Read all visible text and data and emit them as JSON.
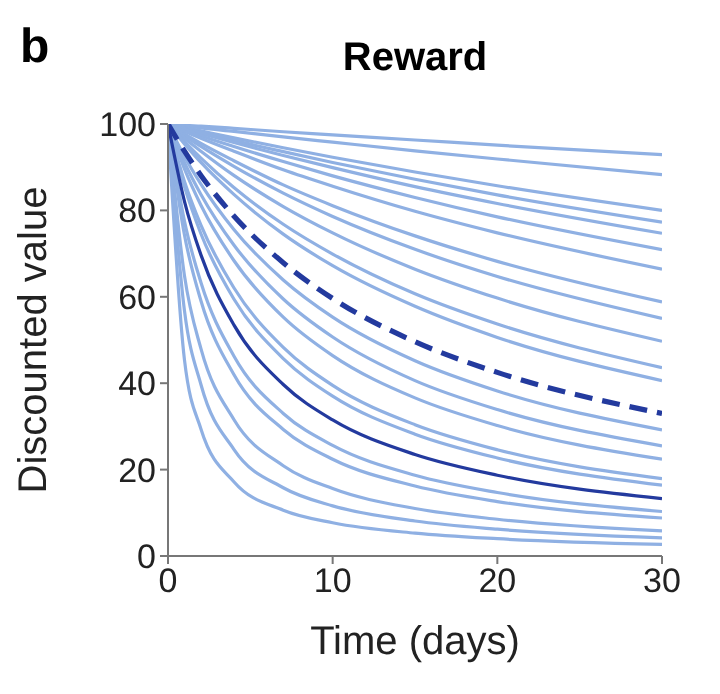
{
  "chart_data": {
    "type": "line",
    "title": "Reward",
    "xlabel": "Time (days)",
    "ylabel": "Discounted value",
    "annotations": [
      "b"
    ],
    "x": [
      0,
      1,
      2,
      4,
      7,
      10,
      15,
      20,
      30
    ],
    "xlim": [
      0,
      30
    ],
    "xticks": [
      0,
      10,
      20,
      30
    ],
    "ylim": [
      0,
      100
    ],
    "yticks": [
      0,
      20,
      40,
      60,
      80,
      100
    ],
    "grid": false,
    "marker": "none",
    "line_style": "solid",
    "series": [
      {
        "color": "#8fb0e3",
        "values": [
          100,
          99.7,
          99.5,
          99.0,
          98.2,
          97.5,
          96.3,
          95.1,
          92.9
        ]
      },
      {
        "color": "#8fb0e3",
        "values": [
          100,
          99.6,
          99.1,
          98.3,
          97.0,
          95.8,
          93.8,
          91.9,
          88.3
        ]
      },
      {
        "color": "#8fb0e3",
        "values": [
          100,
          99.2,
          98.4,
          96.8,
          94.5,
          92.3,
          88.9,
          85.7,
          80.0
        ]
      },
      {
        "color": "#8fb0e3",
        "values": [
          100,
          99.0,
          98.1,
          96.2,
          93.6,
          91.1,
          87.2,
          83.6,
          77.3
        ]
      },
      {
        "color": "#8fb0e3",
        "values": [
          100,
          98.9,
          97.8,
          95.7,
          92.7,
          89.9,
          85.5,
          81.6,
          74.7
        ]
      },
      {
        "color": "#8fb0e3",
        "values": [
          100,
          98.7,
          97.3,
          94.8,
          91.3,
          88.0,
          83.0,
          78.5,
          70.9
        ]
      },
      {
        "color": "#8fb0e3",
        "values": [
          100,
          98.3,
          96.7,
          93.7,
          89.4,
          85.6,
          79.8,
          74.8,
          66.4
        ]
      },
      {
        "color": "#8fb0e3",
        "values": [
          100,
          97.7,
          95.5,
          91.5,
          85.9,
          81.1,
          74.1,
          68.2,
          58.8
        ]
      },
      {
        "color": "#8fb0e3",
        "values": [
          100,
          97.3,
          94.8,
          90.2,
          84.0,
          78.6,
          71.0,
          64.7,
          55.0
        ]
      },
      {
        "color": "#8fb0e3",
        "values": [
          100,
          96.7,
          93.7,
          88.1,
          80.9,
          74.8,
          66.4,
          59.7,
          49.7
        ]
      },
      {
        "color": "#8fb0e3",
        "values": [
          100,
          95.9,
          92.1,
          85.3,
          76.8,
          69.9,
          60.7,
          53.7,
          43.6
        ]
      },
      {
        "color": "#8fb0e3",
        "values": [
          100,
          95.4,
          91.1,
          83.7,
          74.5,
          67.2,
          57.8,
          50.6,
          40.6
        ]
      },
      {
        "color": "#8fb0e3",
        "values": [
          100,
          92.5,
          86.1,
          75.6,
          63.9,
          55.3,
          45.2,
          38.2,
          29.2
        ]
      },
      {
        "color": "#8fb0e3",
        "values": [
          100,
          91.1,
          83.7,
          72.0,
          59.5,
          50.7,
          40.6,
          33.9,
          25.5
        ]
      },
      {
        "color": "#8fb0e3",
        "values": [
          100,
          89.6,
          81.2,
          68.4,
          55.3,
          46.4,
          36.6,
          30.2,
          22.4
        ]
      },
      {
        "color": "#8fb0e3",
        "values": [
          100,
          86.7,
          76.6,
          62.1,
          48.3,
          39.5,
          30.4,
          24.6,
          17.9
        ]
      },
      {
        "color": "#8fb0e3",
        "values": [
          100,
          85.5,
          74.6,
          59.5,
          45.7,
          37.0,
          28.2,
          22.7,
          16.4
        ]
      },
      {
        "color": "#8fb0e3",
        "values": [
          100,
          77.5,
          63.3,
          46.3,
          33.0,
          25.6,
          18.7,
          14.7,
          10.3
        ]
      },
      {
        "color": "#8fb0e3",
        "values": [
          100,
          74.3,
          59.1,
          42.0,
          29.3,
          22.4,
          16.2,
          12.6,
          8.8
        ]
      },
      {
        "color": "#8fb0e3",
        "values": [
          100,
          64.9,
          48.0,
          31.6,
          20.9,
          15.6,
          11.0,
          8.5,
          5.8
        ]
      },
      {
        "color": "#8fb0e3",
        "values": [
          100,
          56.8,
          39.7,
          24.7,
          15.8,
          11.6,
          8.1,
          6.2,
          4.2
        ]
      },
      {
        "color": "#8fb0e3",
        "values": [
          100,
          45.4,
          29.4,
          17.2,
          10.6,
          7.7,
          5.3,
          4.0,
          2.7
        ]
      },
      {
        "color": "#233a9e",
        "line_style": "dashed",
        "values": [
          100,
          93.7,
          88.1,
          78.7,
          67.9,
          59.6,
          49.6,
          42.5,
          33.0
        ]
      },
      {
        "color": "#233a9e",
        "values": [
          100,
          82.1,
          69.7,
          53.5,
          39.7,
          31.5,
          23.5,
          18.7,
          13.3
        ]
      }
    ]
  }
}
